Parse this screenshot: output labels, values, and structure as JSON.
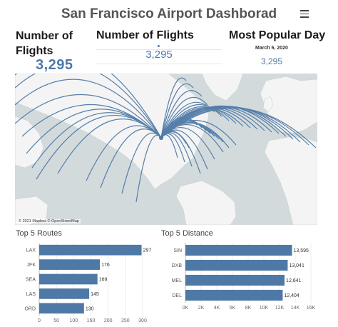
{
  "header": {
    "title": "San Francisco Airport Dashborad",
    "menu_icon": "hamburger-menu-icon"
  },
  "kpis": {
    "kpi1": {
      "label": "Number of Flights",
      "value": "3,295"
    },
    "kpi2": {
      "label": "Number of Flights",
      "value": "3,295"
    },
    "kpi3": {
      "label": "Most Popular Day",
      "date": "March 6, 2020",
      "value": "3,295"
    }
  },
  "map": {
    "credit": "© 2021 Mapbox © OpenStreetMap",
    "route_color": "#4e79a7",
    "land_color": "#f4f4f4",
    "water_color": "#d3dadb"
  },
  "top_routes": {
    "title": "Top 5 Routes",
    "chart_data": {
      "type": "bar",
      "orientation": "horizontal",
      "categories": [
        "LAX",
        "JFK",
        "SEA",
        "LAS",
        "ORD"
      ],
      "values": [
        297,
        176,
        169,
        145,
        130
      ],
      "xlim": [
        0,
        300
      ],
      "xticks": [
        "0",
        "50",
        "100",
        "150",
        "200",
        "250",
        "300"
      ],
      "bar_color": "#4e79a7"
    }
  },
  "top_distance": {
    "title": "Top 5 Distance",
    "chart_data": {
      "type": "bar",
      "orientation": "horizontal",
      "categories": [
        "SIN",
        "DXB",
        "MEL",
        "DEL"
      ],
      "values": [
        13595,
        13041,
        12641,
        12404
      ],
      "value_labels": [
        "13,595",
        "13,041",
        "12,641",
        "12,404"
      ],
      "xlim": [
        0,
        16000
      ],
      "xticks": [
        "0K",
        "2K",
        "4K",
        "6K",
        "8K",
        "10K",
        "12K",
        "14K",
        "16K"
      ],
      "bar_color": "#4e79a7"
    }
  }
}
